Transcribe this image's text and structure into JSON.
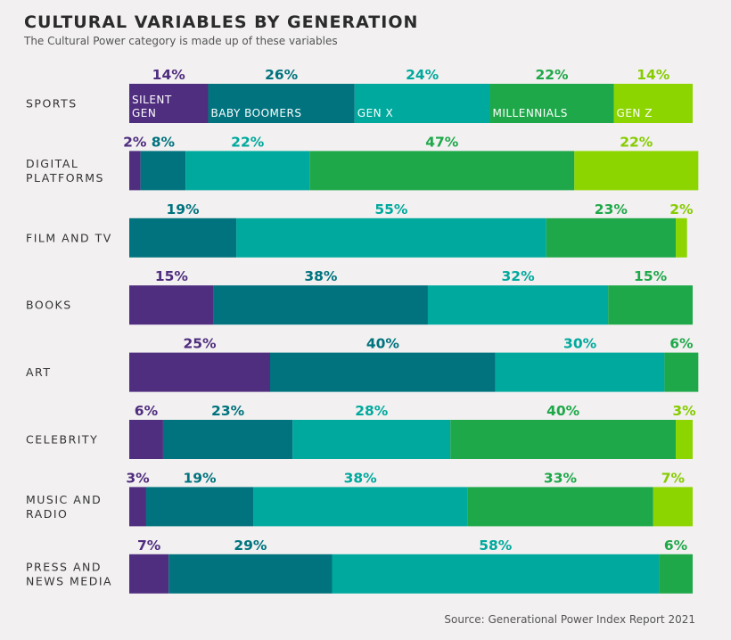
{
  "header": {
    "title": "CULTURAL VARIABLES BY GENERATION",
    "subtitle": "The Cultural Power category is made up of these variables"
  },
  "footer": {
    "source": "Source: Generational Power Index Report 2021"
  },
  "chart_data": {
    "type": "bar",
    "orientation": "horizontal",
    "stacked": true,
    "normalized": true,
    "title": "CULTURAL VARIABLES BY GENERATION",
    "subtitle": "The Cultural Power category is made up of these variables",
    "categories": [
      "SPORTS",
      "DIGITAL PLATFORMS",
      "FILM AND TV",
      "BOOKS",
      "ART",
      "CELEBRITY",
      "MUSIC AND RADIO",
      "PRESS AND NEWS MEDIA"
    ],
    "category_lines": [
      [
        "SPORTS"
      ],
      [
        "DIGITAL",
        "PLATFORMS"
      ],
      [
        "FILM AND TV"
      ],
      [
        "BOOKS"
      ],
      [
        "ART"
      ],
      [
        "CELEBRITY"
      ],
      [
        "MUSIC AND",
        "RADIO"
      ],
      [
        "PRESS AND",
        "NEWS MEDIA"
      ]
    ],
    "series": [
      {
        "name": "SILENT GEN",
        "name_lines": [
          "SILENT",
          "GEN"
        ],
        "color": "#4f2d7f",
        "label_color": "#4f2d7f",
        "values": [
          14,
          2,
          0,
          15,
          25,
          6,
          3,
          7
        ]
      },
      {
        "name": "BABY BOOMERS",
        "name_lines": [
          "BABY BOOMERS"
        ],
        "color": "#00737e",
        "label_color": "#00737e",
        "values": [
          26,
          8,
          19,
          38,
          40,
          23,
          19,
          29
        ]
      },
      {
        "name": "GEN X",
        "name_lines": [
          "GEN X"
        ],
        "color": "#00a99d",
        "label_color": "#00a99d",
        "values": [
          24,
          22,
          55,
          32,
          30,
          28,
          38,
          58
        ]
      },
      {
        "name": "MILLENNIALS",
        "name_lines": [
          "MILLENNIALS"
        ],
        "color": "#1fa84a",
        "label_color": "#1fa84a",
        "values": [
          22,
          47,
          23,
          15,
          6,
          40,
          33,
          6
        ]
      },
      {
        "name": "GEN Z",
        "name_lines": [
          "GEN Z"
        ],
        "color": "#8dd500",
        "label_color": "#86cc00",
        "values": [
          14,
          22,
          2,
          0,
          0,
          3,
          7,
          0
        ]
      }
    ],
    "value_suffix": "%",
    "xlim": [
      0,
      100
    ],
    "legend": "inside first bar",
    "grid": false
  }
}
